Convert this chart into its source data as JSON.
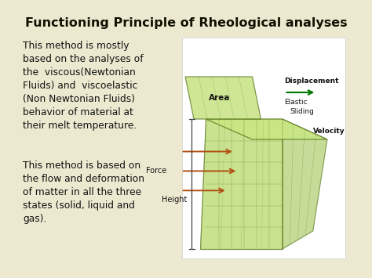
{
  "bg_color": "#ede9d0",
  "title": "Functioning Principle of Rheological analyses",
  "title_color": "#111100",
  "title_fontsize": 11.5,
  "para1": "This method is mostly\nbased on the analyses of\nthe  viscous(Newtonian\nFluids) and  viscoelastic\n(Non Newtonian Fluids)\nbehavior of material at\ntheir melt temperature.",
  "para2": "This method is based on\nthe flow and deformation\nof matter in all the three\nstates (solid, liquid and\ngas).",
  "text_color": "#111111",
  "text_fontsize": 8.8,
  "label_area": "Area",
  "label_force": "Force",
  "label_height": "Height",
  "label_displacement": "Displacement",
  "label_elastic": "Elastic",
  "label_sliding": "Sliding",
  "label_velocity": "Velocity",
  "diag_bg": "#ffffff",
  "fc_front": "#b8d96a",
  "fc_top": "#c8e880",
  "fc_right": "#a8c860",
  "fc_plate": "#c0e070",
  "ec": "#5a7820",
  "lw": 0.9
}
